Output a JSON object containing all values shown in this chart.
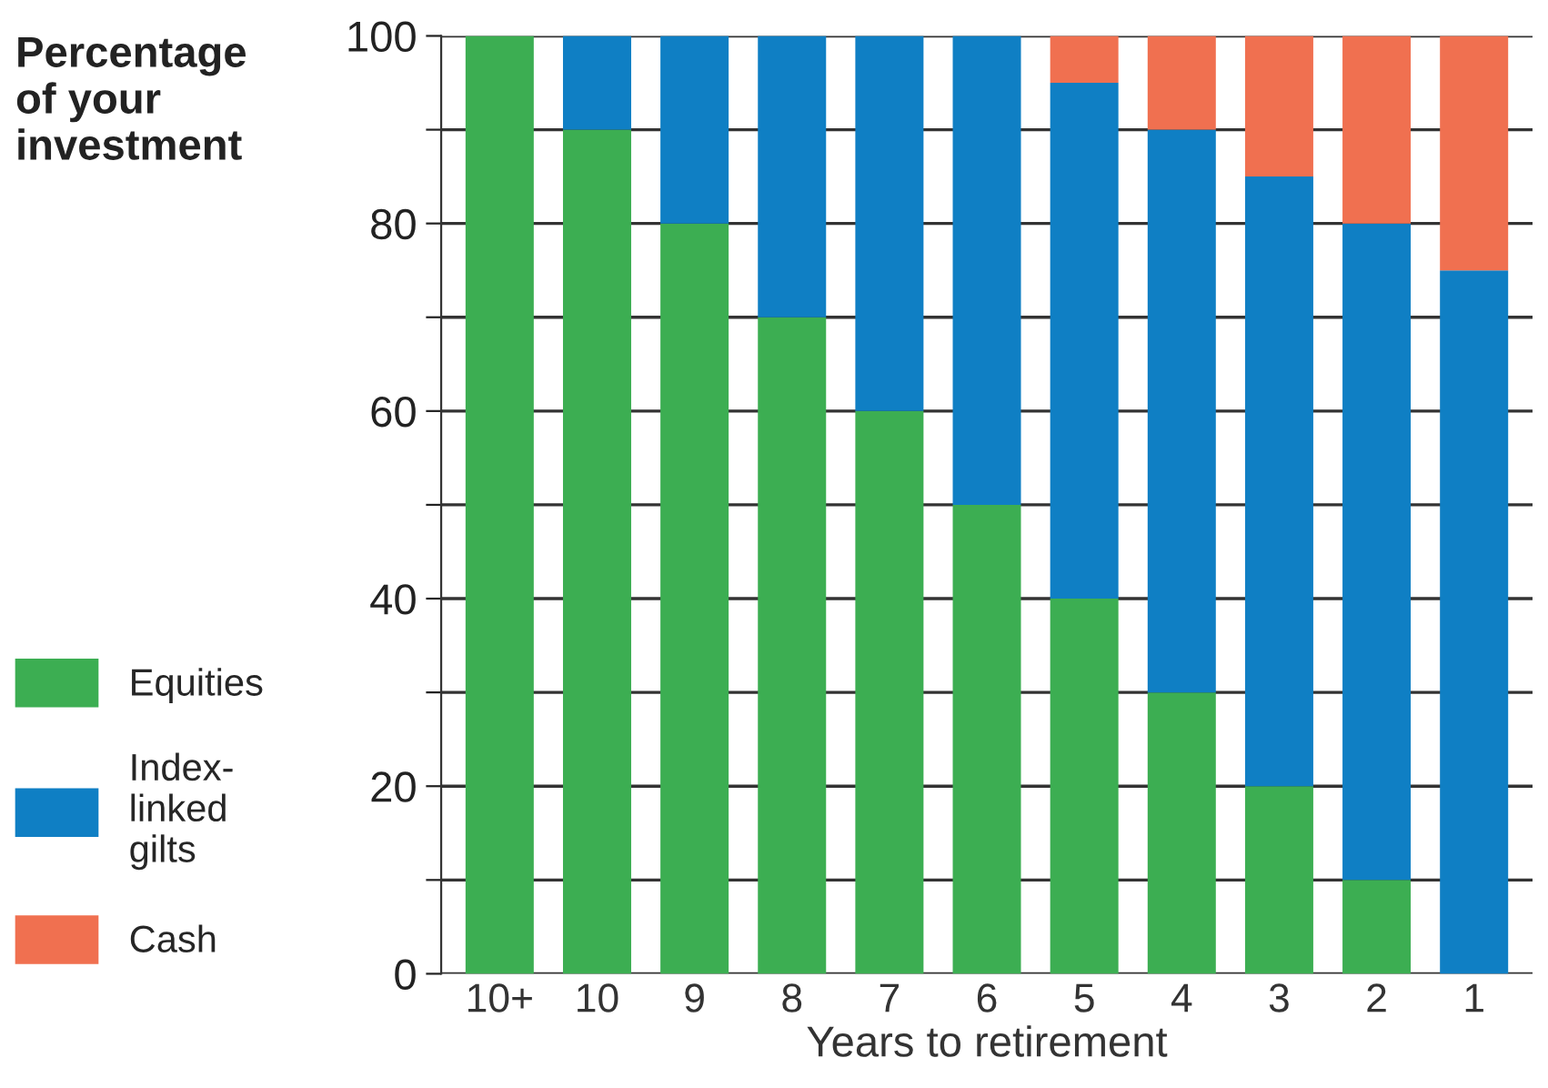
{
  "chart_data": {
    "type": "bar",
    "stacked": true,
    "ylabel": "Percentage\nof your\ninvestment",
    "xlabel": "Years to retirement",
    "categories": [
      "10+",
      "10",
      "9",
      "8",
      "7",
      "6",
      "5",
      "4",
      "3",
      "2",
      "1"
    ],
    "series": [
      {
        "name": "Equities",
        "color": "#3cae52",
        "values": [
          100,
          90,
          80,
          70,
          60,
          50,
          40,
          30,
          20,
          10,
          0
        ]
      },
      {
        "name": "Index-\nlinked\ngilts",
        "color": "#0f7fc4",
        "values": [
          0,
          10,
          20,
          30,
          40,
          50,
          55,
          60,
          65,
          70,
          75
        ]
      },
      {
        "name": "Cash",
        "color": "#f07050",
        "values": [
          0,
          0,
          0,
          0,
          0,
          0,
          5,
          10,
          15,
          20,
          25
        ]
      }
    ],
    "ylim": [
      0,
      100
    ],
    "yticks": [
      0,
      {
        "value": 10,
        "label": null
      },
      20,
      {
        "value": 30,
        "label": null
      },
      40,
      {
        "value": 50,
        "label": null
      },
      60,
      {
        "value": 70,
        "label": null
      },
      80,
      {
        "value": 90,
        "label": null
      },
      100
    ],
    "grid": "y",
    "legend": "left"
  }
}
